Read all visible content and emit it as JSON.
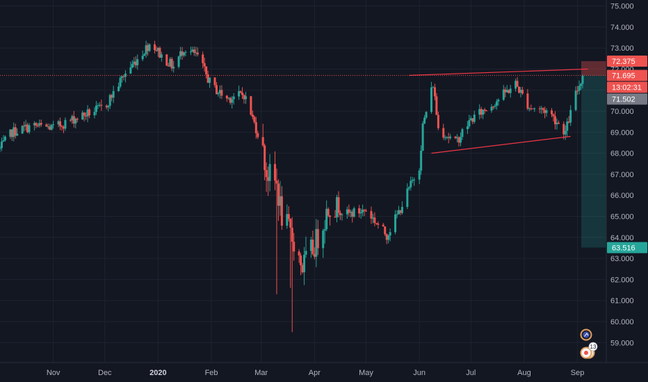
{
  "chart_data": {
    "type": "candlestick",
    "y_range": [
      58.2,
      75.3
    ],
    "y_ticks": [
      "75.000",
      "74.000",
      "73.000",
      "72.000",
      "71.000",
      "70.000",
      "69.000",
      "68.000",
      "67.000",
      "66.000",
      "65.000",
      "64.000",
      "63.000",
      "62.000",
      "61.000",
      "60.000",
      "59.000"
    ],
    "x_labels": [
      "Nov",
      "Dec",
      "2020",
      "Feb",
      "Mar",
      "Apr",
      "May",
      "Jun",
      "Jul",
      "Aug",
      "Sep"
    ],
    "bold_x_labels": [
      "2020"
    ],
    "timeline": {
      "start": "2019-10-01",
      "end": "2020-09-04",
      "label_dates": [
        "2019-11-01",
        "2019-12-01",
        "2020-01-01",
        "2020-02-01",
        "2020-03-01",
        "2020-04-01",
        "2020-05-01",
        "2020-06-01",
        "2020-07-01",
        "2020-08-01",
        "2020-09-01"
      ]
    },
    "price_path": [
      [
        "2019-10-01",
        68.2
      ],
      [
        "2019-10-08",
        69.0
      ],
      [
        "2019-10-20",
        69.3
      ],
      [
        "2019-11-01",
        69.2
      ],
      [
        "2019-11-15",
        69.7
      ],
      [
        "2019-12-01",
        70.2
      ],
      [
        "2019-12-12",
        71.7
      ],
      [
        "2019-12-28",
        73.3
      ],
      [
        "2020-01-03",
        72.6
      ],
      [
        "2020-01-10",
        72.1
      ],
      [
        "2020-01-16",
        73.0
      ],
      [
        "2020-01-24",
        72.6
      ],
      [
        "2020-02-01",
        71.2
      ],
      [
        "2020-02-10",
        70.6
      ],
      [
        "2020-02-20",
        70.8
      ],
      [
        "2020-03-01",
        68.5
      ],
      [
        "2020-03-04",
        67.1
      ],
      [
        "2020-03-10",
        66.5
      ],
      [
        "2020-03-13",
        65.0
      ],
      [
        "2020-03-20",
        63.8
      ],
      [
        "2020-03-25",
        62.6
      ],
      [
        "2020-04-01",
        63.6
      ],
      [
        "2020-04-10",
        65.6
      ],
      [
        "2020-04-20",
        65.1
      ],
      [
        "2020-05-01",
        65.3
      ],
      [
        "2020-05-13",
        64.1
      ],
      [
        "2020-05-20",
        65.2
      ],
      [
        "2020-06-01",
        67.4
      ],
      [
        "2020-06-03",
        69.3
      ],
      [
        "2020-06-09",
        71.3
      ],
      [
        "2020-06-12",
        69.2
      ],
      [
        "2020-06-22",
        68.5
      ],
      [
        "2020-07-01",
        69.6
      ],
      [
        "2020-07-13",
        70.3
      ],
      [
        "2020-07-27",
        71.3
      ],
      [
        "2020-08-04",
        70.2
      ],
      [
        "2020-08-15",
        70.0
      ],
      [
        "2020-08-25",
        69.0
      ],
      [
        "2020-08-31",
        70.8
      ],
      [
        "2020-09-04",
        71.7
      ]
    ],
    "extremes": [
      {
        "date": "2020-03-10",
        "low": 61.3
      },
      {
        "date": "2020-03-19",
        "low": 59.5
      },
      {
        "date": "2020-03-18",
        "low": 61.6
      }
    ],
    "trendlines": [
      {
        "from": [
          "2020-05-26",
          71.7
        ],
        "to": [
          "2020-09-07",
          72.0
        ]
      },
      {
        "from": [
          "2020-06-08",
          68.0
        ],
        "to": [
          "2020-08-28",
          68.8
        ]
      }
    ],
    "position": {
      "entry": 71.695,
      "stop": 72.375,
      "target": 63.516
    },
    "current_price": 71.695,
    "colors": {
      "up": "#26a69a",
      "down": "#ef5350",
      "background": "#131722",
      "grid": "#1f2330"
    }
  },
  "price_labels": [
    {
      "text": "72.375",
      "value": 72.375,
      "color": "#ef5350"
    },
    {
      "text": "71.695",
      "value": 71.695,
      "color": "#ef5350"
    },
    {
      "text": "13:02:31",
      "value": 71.3,
      "color": "#ef5350"
    },
    {
      "text": "71.502",
      "value": 71.502,
      "color": "#787b86"
    },
    {
      "text": "63.516",
      "value": 63.516,
      "color": "#26a69a"
    }
  ],
  "icons": [
    "flag-icon",
    "event-icon"
  ],
  "event_badge": "13"
}
